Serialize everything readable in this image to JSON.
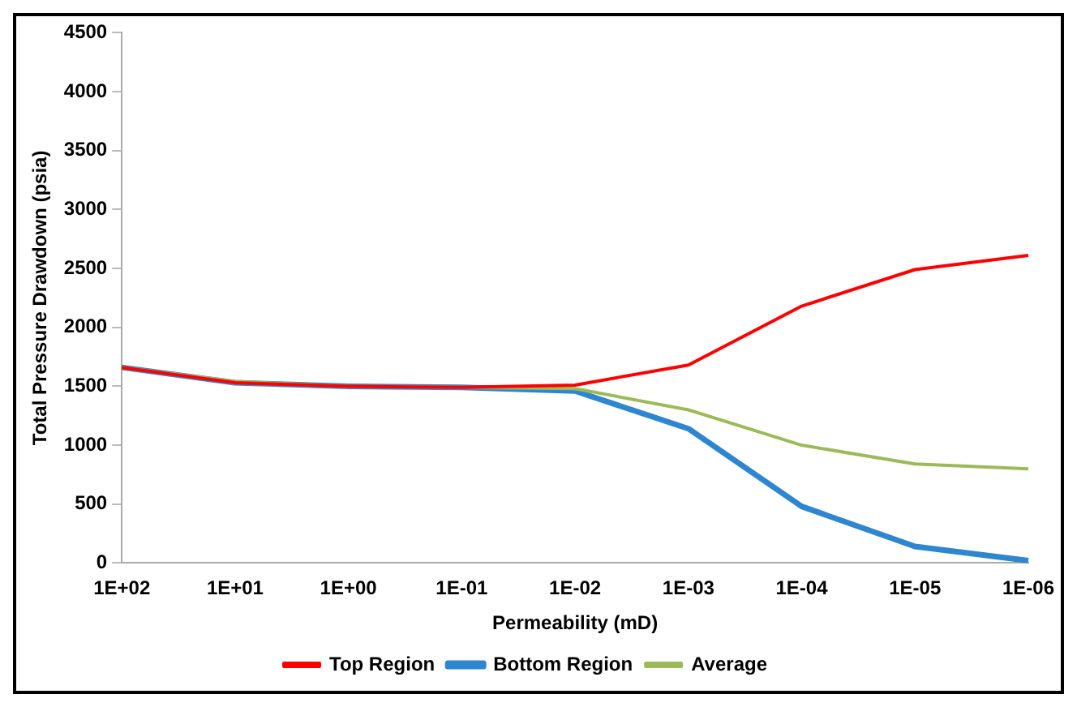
{
  "chart_data": {
    "type": "line",
    "xlabel": "Permeability (mD)",
    "ylabel": "Total Pressure Drawdown (psia)",
    "categories": [
      "1E+02",
      "1E+01",
      "1E+00",
      "1E-01",
      "1E-02",
      "1E-03",
      "1E-04",
      "1E-05",
      "1E-06"
    ],
    "series": [
      {
        "name": "Top Region",
        "color": "#ff0000",
        "values": [
          1660,
          1530,
          1500,
          1490,
          1510,
          1680,
          2180,
          2490,
          2610
        ]
      },
      {
        "name": "Bottom Region",
        "color": "#2f86d0",
        "values": [
          1660,
          1530,
          1500,
          1490,
          1460,
          1140,
          480,
          140,
          20
        ]
      },
      {
        "name": "Average",
        "color": "#9bbb59",
        "values": [
          1660,
          1540,
          1500,
          1490,
          1480,
          1300,
          1000,
          840,
          800
        ]
      }
    ],
    "ylim": [
      0,
      4500
    ],
    "yticks": [
      0,
      500,
      1000,
      1500,
      2000,
      2500,
      3000,
      3500,
      4000,
      4500
    ],
    "grid": false,
    "legend": "bottom",
    "marker": "none",
    "line_style": "solid"
  }
}
